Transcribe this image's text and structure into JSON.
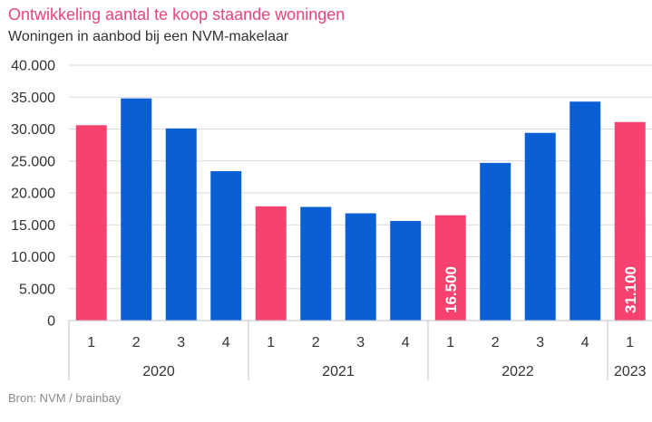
{
  "chart_data": {
    "type": "bar",
    "title": "Ontwikkeling aantal te koop staande woningen",
    "subtitle": "Woningen in aanbod bij een NVM-makelaar",
    "source": "Bron:  NVM / brainbay",
    "xlabel": "",
    "ylabel": "",
    "ylim": [
      0,
      40000
    ],
    "y_ticks": [
      0,
      5000,
      10000,
      15000,
      20000,
      25000,
      30000,
      35000,
      40000
    ],
    "y_tick_labels": [
      "0",
      "5.000",
      "10.000",
      "15.000",
      "20.000",
      "25.000",
      "30.000",
      "35.000",
      "40.000"
    ],
    "grid": true,
    "categories": [
      "1",
      "2",
      "3",
      "4",
      "1",
      "2",
      "3",
      "4",
      "1",
      "2",
      "3",
      "4",
      "1"
    ],
    "years": [
      {
        "label": "2020",
        "quarters": 4
      },
      {
        "label": "2021",
        "quarters": 4
      },
      {
        "label": "2022",
        "quarters": 4
      },
      {
        "label": "2023",
        "quarters": 1
      }
    ],
    "values": [
      30600,
      34800,
      30100,
      23400,
      17900,
      17800,
      16800,
      15600,
      16500,
      24700,
      29400,
      34300,
      31100
    ],
    "highlight": [
      true,
      false,
      false,
      false,
      true,
      false,
      false,
      false,
      true,
      false,
      false,
      false,
      true
    ],
    "data_labels": [
      null,
      null,
      null,
      null,
      null,
      null,
      null,
      null,
      "16.500",
      null,
      null,
      null,
      "31.100"
    ],
    "colors": {
      "highlight": "#f7426f",
      "regular": "#0a5fd4",
      "title": "#e8457a",
      "grid": "#d6d9e6",
      "axis_text": "#333333",
      "source_text": "#8a8a8a"
    }
  }
}
